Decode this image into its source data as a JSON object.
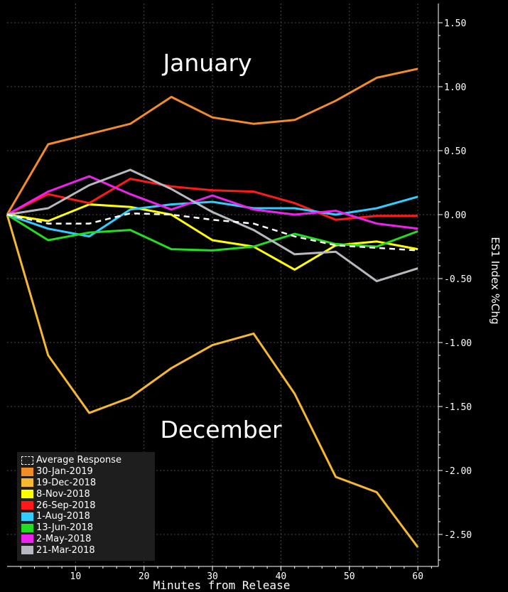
{
  "chart_data": {
    "type": "line",
    "xlabel": "Minutes from Release",
    "ylabel": "ES1 Index %Chg",
    "xlim": [
      0,
      63
    ],
    "ylim": [
      -2.75,
      1.65
    ],
    "x_ticks": [
      "10",
      "20",
      "30",
      "40",
      "50",
      "60"
    ],
    "y_ticks": [
      "1.50",
      "1.00",
      "0.50",
      "0.00",
      "-0.50",
      "-1.00",
      "-1.50",
      "-2.00",
      "-2.50"
    ],
    "grid": true,
    "legend_position": "bottom-left",
    "annotations": [
      "January",
      "December"
    ],
    "x": [
      0,
      6,
      12,
      18,
      24,
      30,
      36,
      42,
      48,
      54,
      60
    ],
    "series": [
      {
        "name": "Average Response",
        "color": "#ffffff",
        "dashed": true,
        "values": [
          0,
          -0.07,
          -0.07,
          0.01,
          0,
          -0.04,
          -0.07,
          -0.17,
          -0.24,
          -0.26,
          -0.28
        ]
      },
      {
        "name": "30-Jan-2019",
        "color": "#f28c28",
        "values": [
          0,
          0.55,
          0.63,
          0.71,
          0.92,
          0.76,
          0.71,
          0.74,
          0.89,
          1.07,
          1.14
        ]
      },
      {
        "name": "19-Dec-2018",
        "color": "#f5b82e",
        "values": [
          0,
          -1.1,
          -1.55,
          -1.43,
          -1.2,
          -1.02,
          -0.93,
          -1.4,
          -2.05,
          -2.17,
          -2.6
        ]
      },
      {
        "name": "8-Nov-2018",
        "color": "#ffff00",
        "values": [
          0,
          -0.05,
          0.08,
          0.06,
          0,
          -0.2,
          -0.25,
          -0.43,
          -0.24,
          -0.21,
          -0.27
        ]
      },
      {
        "name": "26-Sep-2018",
        "color": "#ff1a1a",
        "values": [
          0,
          0.16,
          0.09,
          0.28,
          0.22,
          0.19,
          0.18,
          0.09,
          -0.04,
          -0.01,
          -0.01
        ]
      },
      {
        "name": "1-Aug-2018",
        "color": "#33ccff",
        "values": [
          0,
          -0.11,
          -0.17,
          0.04,
          0.08,
          0.1,
          0.05,
          0.05,
          0,
          0.05,
          0.14
        ]
      },
      {
        "name": "13-Jun-2018",
        "color": "#22dd22",
        "values": [
          0,
          -0.2,
          -0.14,
          -0.12,
          -0.27,
          -0.28,
          -0.25,
          -0.15,
          -0.23,
          -0.25,
          -0.13
        ]
      },
      {
        "name": "2-May-2018",
        "color": "#ee22ee",
        "values": [
          0,
          0.18,
          0.3,
          0.16,
          0.04,
          0.15,
          0.04,
          0,
          0.03,
          -0.07,
          -0.11
        ]
      },
      {
        "name": "21-Mar-2018",
        "color": "#b8b8c0",
        "values": [
          0,
          0.05,
          0.23,
          0.35,
          0.2,
          0.02,
          -0.12,
          -0.31,
          -0.29,
          -0.52,
          -0.42
        ]
      }
    ]
  }
}
